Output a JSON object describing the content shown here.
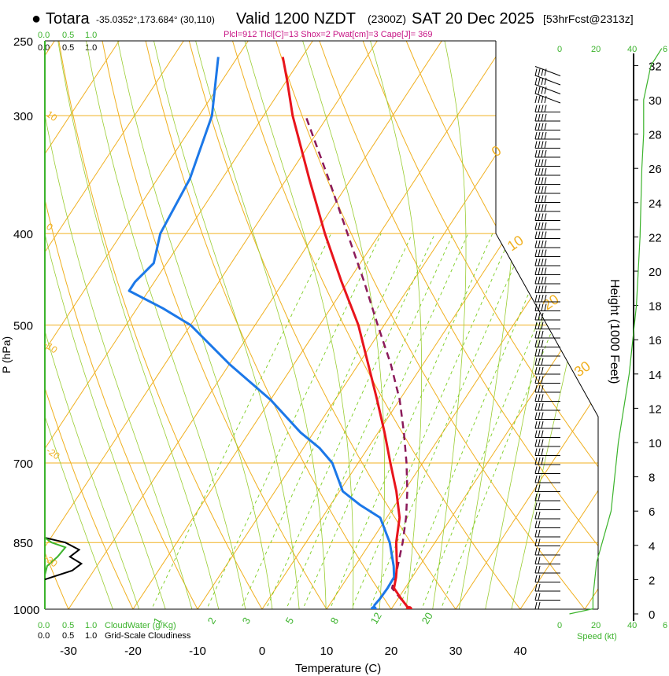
{
  "header": {
    "bullet": "●",
    "station": "Totara",
    "coords": "-35.0352°,173.684° (30,110)",
    "valid": "Valid 1200 NZDT",
    "utc": "(2300Z)",
    "date": "SAT 20 Dec 2025",
    "forecast": "[53hrFcst@2313z]",
    "indices": "Plcl=912 Tlcl[C]=13 Shox=2 Pwat[cm]=3 Cape[J]= 369"
  },
  "axes": {
    "xlabel": "Temperature (C)",
    "ylabel": "P (hPa)",
    "height_label": "Height (1000 Feet)",
    "cloudwater_label": "CloudWater (g/Kg)",
    "cloudiness_label": "Grid-Scale Cloudiness",
    "speed_label": "Speed (kt)",
    "cw_ticks": [
      "0.0",
      "0.5",
      "1.0"
    ],
    "cloud_ticks": [
      "0.0",
      "0.5",
      "1.0"
    ],
    "speed_ticks": [
      "0",
      "20",
      "40",
      "6"
    ]
  },
  "colors": {
    "isotherm": "#f0b020",
    "dry_adiabat": "#f0b020",
    "moist_adiabat": "#9acd32",
    "mixing_ratio": "#7ccd20",
    "temperature": "#e8141c",
    "dewpoint": "#1c78e8",
    "parcel": "#8b1a5a",
    "cloud_water": "#3cb32c",
    "cloudiness": "#000000",
    "indices": "#c71585"
  },
  "chart_data": {
    "type": "skew-t",
    "title": "Totara Valid 1200 NZDT SAT 20 Dec 2025",
    "xlim": [
      -35,
      37
    ],
    "ylim": [
      1000,
      250
    ],
    "x_ticks": [
      -30,
      -20,
      -10,
      0,
      10,
      20,
      30,
      40
    ],
    "p_ticks": [
      250,
      300,
      400,
      500,
      700,
      850,
      1000
    ],
    "height_ticks": [
      0,
      2,
      4,
      6,
      8,
      10,
      12,
      14,
      16,
      18,
      20,
      22,
      24,
      26,
      28,
      30,
      32
    ],
    "dry_adiabat_labels": [
      {
        "label": "10",
        "theta": 10
      },
      {
        "label": "0",
        "theta": 0
      },
      {
        "label": "-10",
        "theta": -10
      },
      {
        "label": "-20",
        "theta": -20
      },
      {
        "label": "-30",
        "theta": -30
      },
      {
        "label": "0",
        "theta": 0
      },
      {
        "label": "10",
        "theta": 10
      },
      {
        "label": "20",
        "theta": 20
      },
      {
        "label": "30",
        "theta": 30
      }
    ],
    "mixing_ratio_labels": [
      "1",
      "2",
      "3",
      "5",
      "8",
      "12",
      "20"
    ],
    "mixing_ratio_values": [
      1,
      2,
      3,
      5,
      8,
      12,
      20
    ],
    "temperature": {
      "name": "Temperature",
      "p": [
        1000,
        975,
        950,
        925,
        900,
        850,
        800,
        750,
        700,
        650,
        600,
        550,
        500,
        450,
        400,
        350,
        300,
        275,
        260
      ],
      "t": [
        22.8,
        20.5,
        18.3,
        17.5,
        16.5,
        14.0,
        12.0,
        8.8,
        5.0,
        1.0,
        -3.5,
        -8.5,
        -14.0,
        -21.0,
        -28.5,
        -36.5,
        -45.5,
        -50.0,
        -53.0
      ]
    },
    "dewpoint": {
      "name": "Dewpoint",
      "p": [
        1000,
        990,
        975,
        950,
        925,
        900,
        850,
        800,
        775,
        750,
        700,
        675,
        650,
        600,
        550,
        500,
        480,
        460,
        450,
        430,
        400,
        350,
        300,
        260
      ],
      "td": [
        17.3,
        17.0,
        17.2,
        17.3,
        17.2,
        16.0,
        13.0,
        9.0,
        4.5,
        0.5,
        -4.0,
        -7.5,
        -12.0,
        -20.0,
        -30.0,
        -40.0,
        -46.0,
        -53.0,
        -53.0,
        -52.0,
        -54.0,
        -55.0,
        -58.0,
        -63.0
      ]
    },
    "parcel": {
      "name": "Parcel",
      "p": [
        1000,
        950,
        912,
        850,
        800,
        750,
        700,
        650,
        600,
        550,
        500,
        450,
        400,
        350,
        300
      ],
      "t": [
        22.8,
        18.0,
        17.0,
        15.0,
        13.0,
        10.5,
        7.5,
        4.0,
        0.0,
        -5.0,
        -11.0,
        -17.5,
        -25.0,
        -33.5,
        -43.5
      ]
    },
    "surface_temperature": 22.8,
    "surface_dewpoint": 17.3,
    "cloud_water": {
      "name": "CloudWater (g/Kg)",
      "p": [
        920,
        900,
        880,
        860,
        850,
        840,
        830
      ],
      "value": [
        0.0,
        0.05,
        0.28,
        0.45,
        0.15,
        0.0,
        0.0
      ]
    },
    "cloudiness": {
      "name": "Grid-Scale Cloudiness",
      "p": [
        930,
        910,
        895,
        880,
        865,
        850,
        840,
        835
      ],
      "value": [
        0.0,
        0.6,
        0.8,
        0.55,
        0.75,
        0.45,
        0.0,
        0.0
      ]
    },
    "wind_speed_profile": {
      "name": "Speed (kt)",
      "height_kft": [
        0,
        0.3,
        1,
        3,
        6,
        10,
        14,
        18,
        22,
        26,
        28,
        30,
        32,
        33
      ],
      "speed": [
        5,
        18,
        18,
        20,
        28,
        32,
        38,
        42,
        44,
        45,
        46,
        46,
        50,
        56
      ]
    },
    "wind_barbs": {
      "name": "Wind barbs",
      "levels_from_surface": 60
    }
  }
}
